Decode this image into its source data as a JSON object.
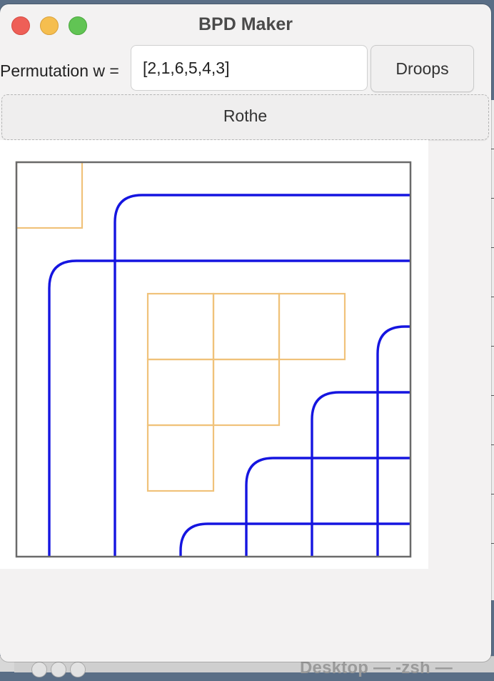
{
  "window": {
    "title": "BPD Maker"
  },
  "controls": {
    "permutation_label": "Permutation w =",
    "permutation_value": "[2,1,6,5,4,3]",
    "droops_label": "Droops",
    "rothe_label": "Rothe"
  },
  "diagram": {
    "permutation": [
      2,
      1,
      6,
      5,
      4,
      3
    ],
    "n": 6,
    "boxes": [
      [
        1,
        1
      ],
      [
        3,
        3
      ],
      [
        3,
        4
      ],
      [
        3,
        5
      ],
      [
        4,
        3
      ],
      [
        4,
        4
      ],
      [
        5,
        3
      ]
    ],
    "colors": {
      "pipe": "#1515e0",
      "box": "#f0c27a",
      "frame": "#6a6a6a"
    }
  },
  "background": {
    "terminal_title": "Desktop — -zsh —"
  }
}
